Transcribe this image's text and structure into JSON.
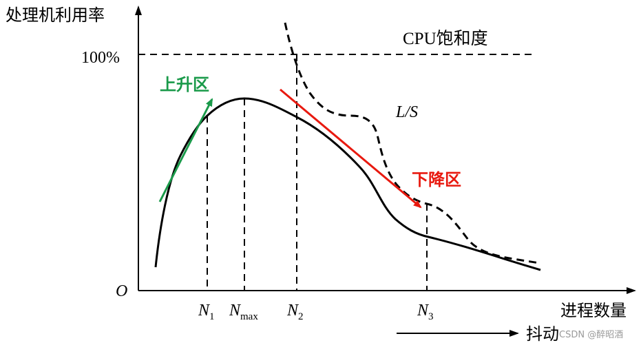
{
  "axes": {
    "y_label": "处理机利用率",
    "x_label": "进程数量",
    "origin": "O",
    "y_tick_100": "100%"
  },
  "labels": {
    "cpu_saturation": "CPU饱和度",
    "ls_curve": "L/S",
    "rise_region": "上升区",
    "fall_region": "下降区",
    "thrashing": "抖动"
  },
  "ticks": {
    "n1": {
      "base": "N",
      "sub": "1"
    },
    "nmax": {
      "base": "N",
      "sub": "max"
    },
    "n2": {
      "base": "N",
      "sub": "2"
    },
    "n3": {
      "base": "N",
      "sub": "3"
    }
  },
  "watermark": "CSDN @醉昭酒",
  "colors": {
    "axis": "#000000",
    "curve": "#000000",
    "rise": "#1a9a4a",
    "fall": "#e8190f"
  }
}
